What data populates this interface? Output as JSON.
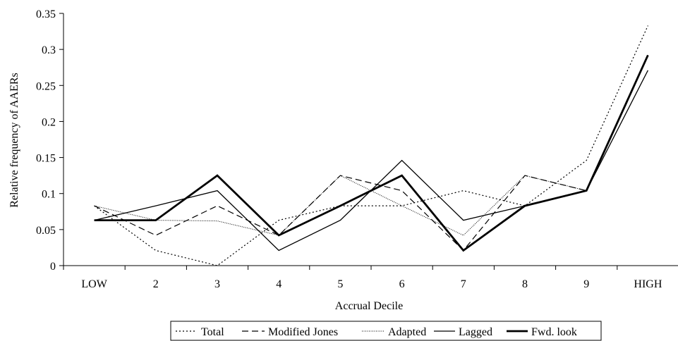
{
  "chart_data": {
    "type": "line",
    "title": "",
    "xlabel": "Accrual Decile",
    "ylabel": "Relative frequency of AAERs",
    "categories": [
      "LOW",
      "2",
      "3",
      "4",
      "5",
      "6",
      "7",
      "8",
      "9",
      "HIGH"
    ],
    "ylim": [
      0,
      0.35
    ],
    "yticks": [
      "0",
      "0.05",
      "0.1",
      "0.15",
      "0.2",
      "0.25",
      "0.3",
      "0.35"
    ],
    "grid": false,
    "legend_position": "bottom",
    "series": [
      {
        "name": "Total",
        "style": "dotted",
        "values": [
          0.083,
          0.021,
          0.0,
          0.063,
          0.083,
          0.083,
          0.104,
          0.083,
          0.146,
          0.333
        ]
      },
      {
        "name": "Modified Jones",
        "style": "dashed",
        "values": [
          0.083,
          0.042,
          0.083,
          0.042,
          0.125,
          0.104,
          0.021,
          0.125,
          0.104,
          0.292
        ]
      },
      {
        "name": "Adapted",
        "style": "fine-dotted",
        "values": [
          0.083,
          0.063,
          0.062,
          0.042,
          0.125,
          0.083,
          0.042,
          0.125,
          0.104,
          0.292
        ]
      },
      {
        "name": "Lagged",
        "style": "solid",
        "values": [
          0.063,
          0.083,
          0.104,
          0.021,
          0.063,
          0.146,
          0.063,
          0.083,
          0.104,
          0.271
        ]
      },
      {
        "name": "Fwd. look",
        "style": "thick",
        "values": [
          0.063,
          0.063,
          0.125,
          0.042,
          0.083,
          0.125,
          0.021,
          0.083,
          0.104,
          0.292
        ]
      }
    ]
  }
}
